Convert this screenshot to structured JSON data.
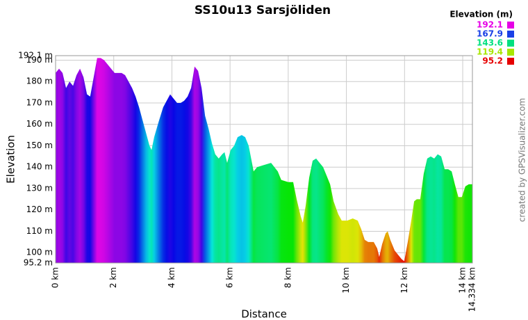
{
  "chart_data": {
    "type": "area",
    "title": "SS10u13 Sarsjöliden",
    "x_label": "Distance",
    "y_label": "Elevation",
    "credit": "created by GPSVisualizer.com",
    "xlim": [
      0,
      14.334
    ],
    "ylim": [
      95.2,
      192.1
    ],
    "xticks": [
      {
        "value": 0,
        "label": "0 km"
      },
      {
        "value": 2,
        "label": "2 km"
      },
      {
        "value": 4,
        "label": "4 km"
      },
      {
        "value": 6,
        "label": "6 km"
      },
      {
        "value": 8,
        "label": "8 km"
      },
      {
        "value": 10,
        "label": "10 km"
      },
      {
        "value": 12,
        "label": "12 km"
      },
      {
        "value": 14,
        "label": "14 km"
      },
      {
        "value": 14.334,
        "label": "14.334 km"
      }
    ],
    "yticks": [
      {
        "value": 95.2,
        "label": "95.2 m"
      },
      {
        "value": 100,
        "label": "100 m"
      },
      {
        "value": 110,
        "label": "110 m"
      },
      {
        "value": 120,
        "label": "120 m"
      },
      {
        "value": 130,
        "label": "130 m"
      },
      {
        "value": 140,
        "label": "140 m"
      },
      {
        "value": 150,
        "label": "150 m"
      },
      {
        "value": 160,
        "label": "160 m"
      },
      {
        "value": 170,
        "label": "170 m"
      },
      {
        "value": 180,
        "label": "180 m"
      },
      {
        "value": 190,
        "label": "190 m"
      },
      {
        "value": 192.1,
        "label": "192.1 m"
      }
    ],
    "grid": true,
    "color_legend": {
      "title": "Elevation (m)",
      "stops": [
        {
          "value": 192.1,
          "color": "#e600e6"
        },
        {
          "value": 167.9,
          "color": "#1a40e6"
        },
        {
          "value": 143.6,
          "color": "#00e080"
        },
        {
          "value": 119.4,
          "color": "#a8e600"
        },
        {
          "value": 95.2,
          "color": "#e60000"
        }
      ]
    },
    "x": [
      0,
      0.12,
      0.24,
      0.36,
      0.48,
      0.6,
      0.72,
      0.84,
      0.96,
      1.08,
      1.19,
      1.31,
      1.43,
      1.55,
      1.67,
      1.79,
      1.91,
      2.03,
      2.15,
      2.27,
      2.39,
      2.51,
      2.63,
      2.75,
      2.87,
      2.99,
      3.11,
      3.23,
      3.3,
      3.39,
      3.54,
      3.7,
      3.82,
      3.94,
      4.06,
      4.18,
      4.3,
      4.42,
      4.54,
      4.66,
      4.78,
      4.9,
      5.02,
      5.14,
      5.26,
      5.38,
      5.49,
      5.61,
      5.73,
      5.81,
      5.9,
      6.02,
      6.14,
      6.26,
      6.4,
      6.52,
      6.64,
      6.81,
      6.93,
      7.17,
      7.41,
      7.64,
      7.76,
      8.0,
      8.17,
      8.29,
      8.43,
      8.5,
      8.6,
      8.72,
      8.84,
      8.96,
      9.08,
      9.2,
      9.32,
      9.44,
      9.56,
      9.72,
      9.84,
      10.03,
      10.22,
      10.39,
      10.51,
      10.63,
      10.75,
      10.94,
      11.06,
      11.13,
      11.23,
      11.35,
      11.42,
      11.51,
      11.66,
      11.78,
      11.9,
      11.99,
      12.11,
      12.23,
      12.33,
      12.42,
      12.54,
      12.66,
      12.78,
      12.9,
      13.02,
      13.14,
      13.26,
      13.38,
      13.5,
      13.62,
      13.73,
      13.85,
      13.97,
      14.09,
      14.21,
      14.334
    ],
    "series": [
      {
        "name": "Elevation",
        "values": [
          184,
          186,
          184,
          177,
          180,
          178,
          183,
          186,
          182,
          174,
          173,
          182,
          191,
          191,
          190,
          188,
          186,
          184,
          184,
          184,
          183,
          180,
          177,
          173,
          168,
          162,
          156,
          150,
          148,
          154,
          161,
          168,
          171,
          174,
          172,
          170,
          170,
          171,
          173,
          177,
          187,
          185,
          177,
          164,
          158,
          151,
          146,
          144,
          146,
          147,
          142,
          148,
          150,
          154,
          155,
          154,
          150,
          138,
          140,
          141,
          142,
          138,
          134,
          133,
          133,
          125,
          117,
          114,
          122,
          135,
          143,
          144,
          142,
          140,
          136,
          132,
          124,
          118,
          115,
          115,
          116,
          115,
          111,
          106,
          105,
          105,
          102,
          98,
          104,
          109,
          110,
          106,
          101,
          99,
          97,
          96,
          105,
          115,
          124,
          125,
          125,
          137,
          144,
          145,
          144,
          146,
          145,
          139,
          139,
          138,
          132,
          126,
          126,
          131,
          132,
          132
        ]
      }
    ]
  }
}
